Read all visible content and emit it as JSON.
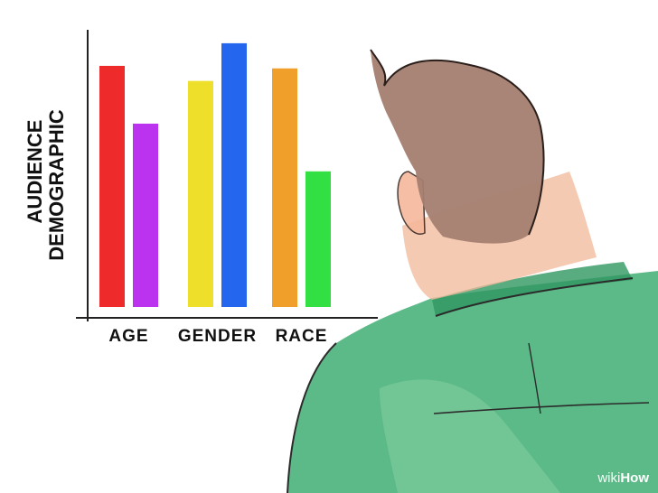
{
  "chart_data": {
    "type": "bar",
    "ylabel_line1": "AUDIENCE",
    "ylabel_line2": "DEMOGRAPHIC",
    "categories": [
      "AGE",
      "GENDER",
      "RACE"
    ],
    "groups": [
      {
        "category": "AGE",
        "bars": [
          {
            "value": 96,
            "color": "#ee2a2a"
          },
          {
            "value": 73,
            "color": "#bb33ee"
          }
        ]
      },
      {
        "category": "GENDER",
        "bars": [
          {
            "value": 90,
            "color": "#eee02a"
          },
          {
            "value": 105,
            "color": "#2566ee"
          }
        ]
      },
      {
        "category": "RACE",
        "bars": [
          {
            "value": 95,
            "color": "#f0a02a"
          },
          {
            "value": 54,
            "color": "#33e044"
          }
        ]
      }
    ],
    "ylim": [
      0,
      110
    ],
    "grid": false
  },
  "watermark": {
    "wiki": "wiki",
    "how": "How"
  }
}
